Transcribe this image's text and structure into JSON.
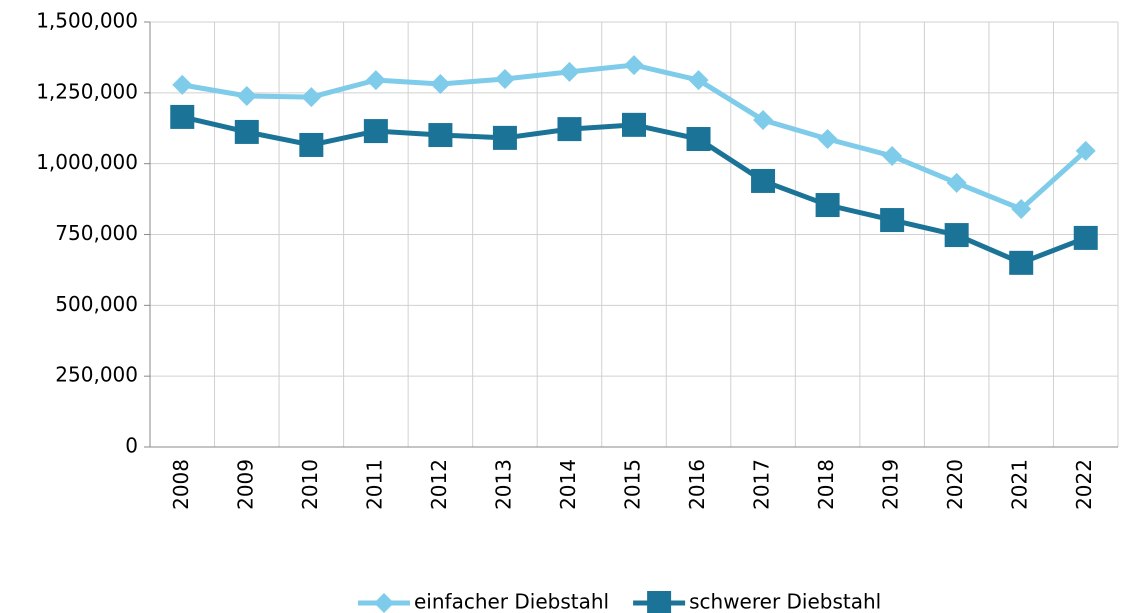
{
  "chart_data": {
    "type": "line",
    "categories": [
      "2008",
      "2009",
      "2010",
      "2011",
      "2012",
      "2013",
      "2014",
      "2015",
      "2016",
      "2017",
      "2018",
      "2019",
      "2020",
      "2021",
      "2022"
    ],
    "series": [
      {
        "name": "einfacher Diebstahl",
        "color": "#7fcbea",
        "marker": "diamond",
        "values": [
          1278000,
          1239000,
          1235000,
          1295000,
          1281000,
          1299000,
          1324000,
          1348000,
          1295000,
          1154000,
          1087000,
          1027000,
          932000,
          840000,
          1045000
        ]
      },
      {
        "name": "schwerer Diebstahl",
        "color": "#1b7497",
        "marker": "square",
        "values": [
          1165000,
          1112000,
          1066000,
          1115000,
          1101000,
          1091000,
          1122000,
          1137000,
          1087000,
          939000,
          854000,
          801000,
          748000,
          650000,
          738000
        ]
      }
    ],
    "ylim": [
      0,
      1500000
    ],
    "yticks": [
      0,
      {
        "value": 250000,
        "label": "250,000"
      },
      {
        "value": 500000,
        "label": "500,000"
      },
      {
        "value": 750000,
        "label": "750,000"
      },
      {
        "value": 1000000,
        "label": "1,000,000"
      },
      {
        "value": 1250000,
        "label": "1,250,000"
      },
      {
        "value": 1500000,
        "label": "1,500,000"
      }
    ],
    "grid": true,
    "legend": "bottom"
  }
}
